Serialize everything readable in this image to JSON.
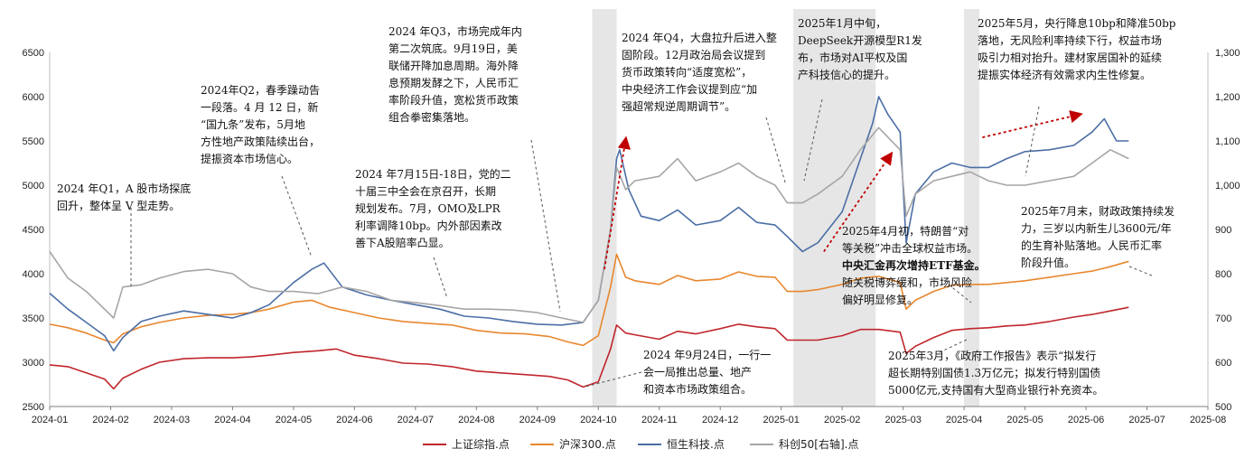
{
  "chart_data": {
    "type": "line",
    "x_labels": [
      "2024-01",
      "2024-02",
      "2024-03",
      "2024-04",
      "2024-05",
      "2024-06",
      "2024-07",
      "2024-08",
      "2024-09",
      "2024-10",
      "2024-11",
      "2024-12",
      "2025-01",
      "2025-02",
      "2025-03",
      "2025-04",
      "2025-05",
      "2025-06",
      "2025-07",
      "2025-08"
    ],
    "y_left": {
      "min": 2500,
      "max": 6500,
      "ticks": [
        "2500",
        "3000",
        "3500",
        "4000",
        "4500",
        "5000",
        "5500",
        "6000",
        "6500"
      ]
    },
    "y_right": {
      "min": 500,
      "max": 1300,
      "ticks": [
        "500",
        "600",
        "700",
        "800",
        "900",
        "1,000",
        "1,100",
        "1,200",
        "1,300"
      ]
    },
    "grid": false,
    "legend_position": "bottom",
    "shaded_periods": [
      {
        "from": 8.9,
        "to": 9.3
      },
      {
        "from": 12.2,
        "to": 13.55
      },
      {
        "from": 15.0,
        "to": 15.25
      }
    ],
    "series": [
      {
        "name": "上证综指.点",
        "axis": "left",
        "color": "#c0262c",
        "points": [
          [
            0,
            2970
          ],
          [
            0.3,
            2950
          ],
          [
            0.6,
            2880
          ],
          [
            0.9,
            2810
          ],
          [
            1.05,
            2700
          ],
          [
            1.2,
            2820
          ],
          [
            1.5,
            2920
          ],
          [
            1.8,
            3000
          ],
          [
            2.2,
            3040
          ],
          [
            2.6,
            3050
          ],
          [
            3.0,
            3050
          ],
          [
            3.3,
            3060
          ],
          [
            3.6,
            3080
          ],
          [
            4.0,
            3110
          ],
          [
            4.4,
            3130
          ],
          [
            4.7,
            3150
          ],
          [
            5.0,
            3080
          ],
          [
            5.4,
            3040
          ],
          [
            5.8,
            2990
          ],
          [
            6.2,
            2980
          ],
          [
            6.6,
            2950
          ],
          [
            7.0,
            2900
          ],
          [
            7.4,
            2880
          ],
          [
            7.8,
            2860
          ],
          [
            8.2,
            2840
          ],
          [
            8.5,
            2800
          ],
          [
            8.75,
            2720
          ],
          [
            9.0,
            2780
          ],
          [
            9.2,
            3150
          ],
          [
            9.3,
            3420
          ],
          [
            9.45,
            3330
          ],
          [
            9.6,
            3310
          ],
          [
            10.0,
            3260
          ],
          [
            10.3,
            3350
          ],
          [
            10.6,
            3320
          ],
          [
            11.0,
            3380
          ],
          [
            11.3,
            3430
          ],
          [
            11.6,
            3400
          ],
          [
            11.9,
            3380
          ],
          [
            12.1,
            3250
          ],
          [
            12.35,
            3250
          ],
          [
            12.6,
            3250
          ],
          [
            13.0,
            3300
          ],
          [
            13.3,
            3370
          ],
          [
            13.6,
            3370
          ],
          [
            13.95,
            3340
          ],
          [
            14.05,
            3100
          ],
          [
            14.2,
            3180
          ],
          [
            14.5,
            3280
          ],
          [
            14.8,
            3360
          ],
          [
            15.1,
            3380
          ],
          [
            15.4,
            3390
          ],
          [
            15.7,
            3410
          ],
          [
            16.0,
            3420
          ],
          [
            16.4,
            3460
          ],
          [
            16.8,
            3510
          ],
          [
            17.1,
            3540
          ],
          [
            17.4,
            3580
          ],
          [
            17.7,
            3620
          ]
        ]
      },
      {
        "name": "沪深300.点",
        "axis": "left",
        "color": "#e8872e",
        "points": [
          [
            0,
            3430
          ],
          [
            0.3,
            3390
          ],
          [
            0.6,
            3330
          ],
          [
            0.9,
            3250
          ],
          [
            1.05,
            3220
          ],
          [
            1.2,
            3320
          ],
          [
            1.5,
            3400
          ],
          [
            1.8,
            3450
          ],
          [
            2.2,
            3500
          ],
          [
            2.6,
            3530
          ],
          [
            3.0,
            3540
          ],
          [
            3.3,
            3560
          ],
          [
            3.6,
            3600
          ],
          [
            4.0,
            3680
          ],
          [
            4.3,
            3700
          ],
          [
            4.6,
            3620
          ],
          [
            5.0,
            3560
          ],
          [
            5.4,
            3500
          ],
          [
            5.8,
            3460
          ],
          [
            6.2,
            3440
          ],
          [
            6.6,
            3420
          ],
          [
            7.0,
            3360
          ],
          [
            7.4,
            3330
          ],
          [
            7.8,
            3320
          ],
          [
            8.2,
            3290
          ],
          [
            8.5,
            3230
          ],
          [
            8.75,
            3190
          ],
          [
            9.0,
            3300
          ],
          [
            9.2,
            3850
          ],
          [
            9.3,
            4220
          ],
          [
            9.45,
            3960
          ],
          [
            9.6,
            3920
          ],
          [
            10.0,
            3880
          ],
          [
            10.3,
            3980
          ],
          [
            10.6,
            3920
          ],
          [
            11.0,
            3940
          ],
          [
            11.3,
            4020
          ],
          [
            11.6,
            3970
          ],
          [
            11.9,
            3960
          ],
          [
            12.1,
            3800
          ],
          [
            12.35,
            3800
          ],
          [
            12.6,
            3820
          ],
          [
            13.0,
            3880
          ],
          [
            13.3,
            3950
          ],
          [
            13.6,
            3970
          ],
          [
            13.95,
            3900
          ],
          [
            14.05,
            3600
          ],
          [
            14.2,
            3700
          ],
          [
            14.5,
            3800
          ],
          [
            14.8,
            3870
          ],
          [
            15.1,
            3880
          ],
          [
            15.4,
            3880
          ],
          [
            15.7,
            3900
          ],
          [
            16.0,
            3920
          ],
          [
            16.4,
            3960
          ],
          [
            16.8,
            4000
          ],
          [
            17.1,
            4030
          ],
          [
            17.4,
            4080
          ],
          [
            17.7,
            4140
          ]
        ]
      },
      {
        "name": "恒生科技.点",
        "axis": "left",
        "color": "#4b6ea5",
        "points": [
          [
            0,
            3780
          ],
          [
            0.3,
            3600
          ],
          [
            0.6,
            3450
          ],
          [
            0.9,
            3300
          ],
          [
            1.05,
            3130
          ],
          [
            1.2,
            3280
          ],
          [
            1.5,
            3460
          ],
          [
            1.8,
            3520
          ],
          [
            2.2,
            3580
          ],
          [
            2.6,
            3540
          ],
          [
            3.0,
            3500
          ],
          [
            3.3,
            3560
          ],
          [
            3.6,
            3650
          ],
          [
            4.0,
            3900
          ],
          [
            4.3,
            4050
          ],
          [
            4.5,
            4120
          ],
          [
            4.8,
            3850
          ],
          [
            5.2,
            3760
          ],
          [
            5.6,
            3700
          ],
          [
            6.0,
            3650
          ],
          [
            6.4,
            3600
          ],
          [
            6.8,
            3520
          ],
          [
            7.2,
            3500
          ],
          [
            7.6,
            3460
          ],
          [
            8.0,
            3430
          ],
          [
            8.4,
            3420
          ],
          [
            8.75,
            3450
          ],
          [
            9.0,
            3700
          ],
          [
            9.2,
            4500
          ],
          [
            9.3,
            5300
          ],
          [
            9.35,
            5400
          ],
          [
            9.5,
            4950
          ],
          [
            9.7,
            4650
          ],
          [
            10.0,
            4600
          ],
          [
            10.3,
            4720
          ],
          [
            10.6,
            4550
          ],
          [
            11.0,
            4600
          ],
          [
            11.3,
            4750
          ],
          [
            11.6,
            4580
          ],
          [
            11.9,
            4550
          ],
          [
            12.1,
            4420
          ],
          [
            12.35,
            4250
          ],
          [
            12.6,
            4350
          ],
          [
            13.0,
            4700
          ],
          [
            13.3,
            5300
          ],
          [
            13.5,
            5700
          ],
          [
            13.6,
            6000
          ],
          [
            13.75,
            5800
          ],
          [
            13.95,
            5600
          ],
          [
            14.05,
            4350
          ],
          [
            14.2,
            4900
          ],
          [
            14.5,
            5150
          ],
          [
            14.8,
            5250
          ],
          [
            15.1,
            5200
          ],
          [
            15.4,
            5200
          ],
          [
            15.7,
            5300
          ],
          [
            16.0,
            5380
          ],
          [
            16.4,
            5400
          ],
          [
            16.8,
            5450
          ],
          [
            17.1,
            5600
          ],
          [
            17.3,
            5750
          ],
          [
            17.5,
            5500
          ],
          [
            17.7,
            5500
          ]
        ]
      },
      {
        "name": "科创50[右轴].点",
        "axis": "right",
        "color": "#a6a6a6",
        "points": [
          [
            0,
            850
          ],
          [
            0.3,
            790
          ],
          [
            0.6,
            760
          ],
          [
            0.9,
            720
          ],
          [
            1.05,
            700
          ],
          [
            1.2,
            770
          ],
          [
            1.5,
            775
          ],
          [
            1.8,
            790
          ],
          [
            2.2,
            805
          ],
          [
            2.6,
            810
          ],
          [
            3.0,
            800
          ],
          [
            3.3,
            770
          ],
          [
            3.6,
            760
          ],
          [
            4.0,
            760
          ],
          [
            4.4,
            755
          ],
          [
            4.8,
            770
          ],
          [
            5.2,
            760
          ],
          [
            5.6,
            740
          ],
          [
            6.0,
            735
          ],
          [
            6.4,
            728
          ],
          [
            6.8,
            720
          ],
          [
            7.2,
            720
          ],
          [
            7.6,
            718
          ],
          [
            8.0,
            712
          ],
          [
            8.4,
            700
          ],
          [
            8.75,
            690
          ],
          [
            9.0,
            740
          ],
          [
            9.2,
            900
          ],
          [
            9.3,
            1040
          ],
          [
            9.45,
            990
          ],
          [
            9.6,
            1010
          ],
          [
            10.0,
            1020
          ],
          [
            10.3,
            1060
          ],
          [
            10.6,
            1010
          ],
          [
            11.0,
            1030
          ],
          [
            11.3,
            1050
          ],
          [
            11.6,
            1020
          ],
          [
            11.9,
            1000
          ],
          [
            12.1,
            960
          ],
          [
            12.35,
            960
          ],
          [
            12.6,
            980
          ],
          [
            13.0,
            1020
          ],
          [
            13.3,
            1080
          ],
          [
            13.6,
            1130
          ],
          [
            13.95,
            1080
          ],
          [
            14.05,
            930
          ],
          [
            14.2,
            980
          ],
          [
            14.5,
            1010
          ],
          [
            14.8,
            1020
          ],
          [
            15.1,
            1030
          ],
          [
            15.4,
            1010
          ],
          [
            15.7,
            1000
          ],
          [
            16.0,
            1000
          ],
          [
            16.4,
            1010
          ],
          [
            16.8,
            1020
          ],
          [
            17.1,
            1050
          ],
          [
            17.4,
            1080
          ],
          [
            17.7,
            1060
          ]
        ]
      }
    ],
    "annotations": [
      {
        "lines": [
          "2024 年Q1，A 股市场探底",
          "回升，整体呈 V 型走势。"
        ],
        "anchor": [
          1.3,
          3720
        ]
      },
      {
        "lines": [
          "2024年Q2，春季躁动告",
          "一段落。4 月 12 日，新",
          "“国九条”发布，5月地",
          "方性地产政策陆续出台，",
          "提振资本市场信心。"
        ],
        "anchor": [
          4.3,
          4000
        ]
      },
      {
        "lines": [
          "2024 年7月15日-18日，党的二",
          "十届三中全会在京召开，长期",
          "规划发布。7月，OMO及LPR",
          "利率调降10bp。内外部因素改",
          "善下A股赔率凸显。"
        ],
        "anchor": [
          6.5,
          3660
        ]
      },
      {
        "lines": [
          "2024 年Q3，市场完成年内",
          "第二次筑底。9月19日，美",
          "联储开降加息周期。海外降",
          "息预期发酵之下，人民币汇",
          "率阶段升值，宽松货币政策",
          "组合拳密集落地。"
        ],
        "anchor": [
          8.65,
          3520
        ]
      },
      {
        "lines": [
          "2024 年Q4，大盘拉升后进入整",
          "固阶段。12月政治局会议提到",
          "货币政策转向“适度宽松”，",
          "中央经济工作会议提到应“加",
          "强超常规逆周期调节”。"
        ],
        "anchor": [
          12.1,
          4850
        ]
      },
      {
        "lines": [
          "2025年1月中旬，",
          "DeepSeek开源模型R1发",
          "布，市场对AI平权及国",
          "产科技信心的提升。"
        ],
        "anchor": [
          12.35,
          4800
        ]
      },
      {
        "lines": [
          "2025年5月，央行降息10bp和降准50bp",
          "落地，无风险利率持续下行，权益市场",
          "吸引力相对抬升。建材家居国补的延续",
          "提振实体经济有效需求内生性修复。"
        ],
        "anchor": [
          15.2,
          4900
        ]
      },
      {
        "lines": [
          "2025年4月初，特朗普“对",
          "等关税”冲击全球权益市场。",
          "中央汇金再次增持ETF基金。",
          "随关税博弈缓和，市场风险",
          "偏好明显修复。"
        ],
        "anchor": [
          15.0,
          3900
        ],
        "bold_line": 2
      },
      {
        "lines": [
          "2025年7月末，财政政策持续发",
          "力，三岁以内新生儿3600元/年",
          "的生育补贴落地。人民币汇率",
          "阶段升值。"
        ],
        "anchor": [
          17.3,
          3950
        ]
      },
      {
        "lines": [
          "2024 年9月24日，一行一",
          "会一局推出总量、地产",
          "和资本市场政策组合。"
        ],
        "anchor": [
          8.8,
          2750
        ]
      },
      {
        "lines": [
          "2025年3月，《政府工作报告》表示“拟发行",
          "超长期特别国债1.3万亿元；拟发行特别国债",
          "5000亿元,支持国有大型商业银行补充资本。"
        ],
        "anchor": [
          14.05,
          3400
        ]
      }
    ],
    "trend_arrows": [
      {
        "from": [
          9.1,
          4050
        ],
        "to": [
          9.45,
          5520
        ]
      },
      {
        "from": [
          12.7,
          4250
        ],
        "to": [
          13.8,
          5350
        ]
      },
      {
        "from": [
          15.3,
          5540
        ],
        "to": [
          16.9,
          5800
        ]
      }
    ]
  }
}
